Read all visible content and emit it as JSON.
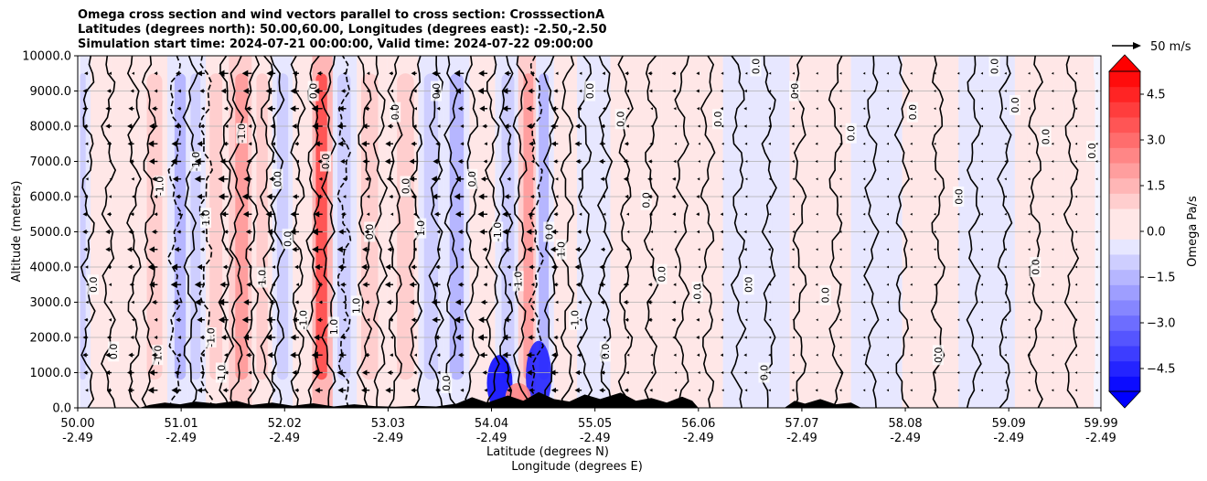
{
  "title_lines": [
    "Omega cross section and wind vectors parallel to cross section: CrosssectionA",
    "Latitudes (degrees north): 50.00,60.00, Longitudes (degrees east): -2.50,-2.50",
    "Simulation start time: 2024-07-21 00:00:00, Valid time: 2024-07-22 09:00:00"
  ],
  "chart_data": {
    "type": "heatmap",
    "title": "Omega cross section and wind vectors parallel to cross section: CrosssectionA",
    "xlabel_lines": [
      "Latitude (degrees N)",
      "Longitude (degrees E)"
    ],
    "ylabel": "Altitude (meters)",
    "xlim": [
      50.0,
      59.99
    ],
    "ylim": [
      0,
      10000
    ],
    "x_ticks": [
      {
        "lat": "50.00",
        "lon": "-2.49",
        "value": 50.0
      },
      {
        "lat": "51.01",
        "lon": "-2.49",
        "value": 51.01
      },
      {
        "lat": "52.02",
        "lon": "-2.49",
        "value": 52.02
      },
      {
        "lat": "53.03",
        "lon": "-2.49",
        "value": 53.03
      },
      {
        "lat": "54.04",
        "lon": "-2.49",
        "value": 54.04
      },
      {
        "lat": "55.05",
        "lon": "-2.49",
        "value": 55.05
      },
      {
        "lat": "56.06",
        "lon": "-2.49",
        "value": 56.06
      },
      {
        "lat": "57.07",
        "lon": "-2.49",
        "value": 57.07
      },
      {
        "lat": "58.08",
        "lon": "-2.49",
        "value": 58.08
      },
      {
        "lat": "59.09",
        "lon": "-2.49",
        "value": 59.09
      },
      {
        "lat": "59.99",
        "lon": "-2.49",
        "value": 59.99
      }
    ],
    "y_ticks": [
      {
        "label": "0.0",
        "value": 0
      },
      {
        "label": "1000.0",
        "value": 1000
      },
      {
        "label": "2000.0",
        "value": 2000
      },
      {
        "label": "3000.0",
        "value": 3000
      },
      {
        "label": "4000.0",
        "value": 4000
      },
      {
        "label": "5000.0",
        "value": 5000
      },
      {
        "label": "6000.0",
        "value": 6000
      },
      {
        "label": "7000.0",
        "value": 7000
      },
      {
        "label": "8000.0",
        "value": 8000
      },
      {
        "label": "9000.0",
        "value": 9000
      },
      {
        "label": "10000.0",
        "value": 10000
      }
    ],
    "grid": true,
    "colorbar": {
      "label": "Omega Pa/s",
      "range": [
        -5.25,
        5.25
      ],
      "levels_step": 0.5,
      "ticks": [
        {
          "label": "4.5",
          "value": 4.5
        },
        {
          "label": "3.0",
          "value": 3.0
        },
        {
          "label": "1.5",
          "value": 1.5
        },
        {
          "label": "0.0",
          "value": 0.0
        },
        {
          "label": "−1.5",
          "value": -1.5
        },
        {
          "label": "−3.0",
          "value": -3.0
        },
        {
          "label": "−4.5",
          "value": -4.5
        }
      ],
      "colors": {
        "positive_max": "#ff0000",
        "zero": "#ffffff",
        "negative_max": "#0000ff"
      }
    },
    "quiver_key": {
      "label": "50 m/s",
      "speed": 50
    },
    "omega_bands": [
      {
        "lat": 50.05,
        "omega": -0.6
      },
      {
        "lat": 50.2,
        "omega": 0.4
      },
      {
        "lat": 50.45,
        "omega": 0.3
      },
      {
        "lat": 50.75,
        "omega": 0.7
      },
      {
        "lat": 51.0,
        "omega": -1.4
      },
      {
        "lat": 51.15,
        "omega": -1.0
      },
      {
        "lat": 51.35,
        "omega": 0.8
      },
      {
        "lat": 51.6,
        "omega": 1.8
      },
      {
        "lat": 51.8,
        "omega": 0.9
      },
      {
        "lat": 52.0,
        "omega": -0.6
      },
      {
        "lat": 52.2,
        "omega": 0.5
      },
      {
        "lat": 52.38,
        "omega": 3.5
      },
      {
        "lat": 52.6,
        "omega": -0.8
      },
      {
        "lat": 52.85,
        "omega": 0.6
      },
      {
        "lat": 53.2,
        "omega": 0.9
      },
      {
        "lat": 53.45,
        "omega": -0.7
      },
      {
        "lat": 53.7,
        "omega": -1.2
      },
      {
        "lat": 53.95,
        "omega": 0.4
      },
      {
        "lat": 54.2,
        "omega": -0.9
      },
      {
        "lat": 54.4,
        "omega": 1.6
      },
      {
        "lat": 54.55,
        "omega": -1.3
      },
      {
        "lat": 54.75,
        "omega": 0.5
      },
      {
        "lat": 55.0,
        "omega": -0.4
      },
      {
        "lat": 55.4,
        "omega": 0.3
      },
      {
        "lat": 56.0,
        "omega": 0.5
      },
      {
        "lat": 56.6,
        "omega": -0.3
      },
      {
        "lat": 57.3,
        "omega": 0.3
      },
      {
        "lat": 57.8,
        "omega": -0.3
      },
      {
        "lat": 58.3,
        "omega": 0.4
      },
      {
        "lat": 58.9,
        "omega": -0.3
      },
      {
        "lat": 59.4,
        "omega": 0.3
      },
      {
        "lat": 59.85,
        "omega": 0.2
      }
    ],
    "low_level_cells": [
      {
        "lat": 54.12,
        "alt": 700,
        "omega": -5.0
      },
      {
        "lat": 54.5,
        "alt": 900,
        "omega": -4.5
      },
      {
        "lat": 54.3,
        "alt": 300,
        "omega": 2.5
      }
    ],
    "contours": [
      {
        "lat": 50.1,
        "style": "solid"
      },
      {
        "lat": 50.3,
        "style": "solid"
      },
      {
        "lat": 50.55,
        "style": "solid"
      },
      {
        "lat": 50.7,
        "style": "solid"
      },
      {
        "lat": 50.95,
        "style": "dashed"
      },
      {
        "lat": 51.1,
        "style": "solid"
      },
      {
        "lat": 51.25,
        "style": "dashed"
      },
      {
        "lat": 51.45,
        "style": "solid"
      },
      {
        "lat": 51.55,
        "style": "solid"
      },
      {
        "lat": 51.7,
        "style": "solid"
      },
      {
        "lat": 51.85,
        "style": "solid"
      },
      {
        "lat": 51.95,
        "style": "solid"
      },
      {
        "lat": 52.15,
        "style": "solid"
      },
      {
        "lat": 52.3,
        "style": "solid"
      },
      {
        "lat": 52.45,
        "style": "solid"
      },
      {
        "lat": 52.6,
        "style": "dashed"
      },
      {
        "lat": 52.8,
        "style": "solid"
      },
      {
        "lat": 52.95,
        "style": "solid"
      },
      {
        "lat": 53.1,
        "style": "solid"
      },
      {
        "lat": 53.3,
        "style": "solid"
      },
      {
        "lat": 53.5,
        "style": "solid"
      },
      {
        "lat": 53.65,
        "style": "solid"
      },
      {
        "lat": 53.85,
        "style": "solid"
      },
      {
        "lat": 54.05,
        "style": "solid"
      },
      {
        "lat": 54.18,
        "style": "solid"
      },
      {
        "lat": 54.32,
        "style": "solid"
      },
      {
        "lat": 54.48,
        "style": "dashed"
      },
      {
        "lat": 54.62,
        "style": "solid"
      },
      {
        "lat": 54.78,
        "style": "solid"
      },
      {
        "lat": 54.95,
        "style": "solid"
      },
      {
        "lat": 55.15,
        "style": "solid"
      },
      {
        "lat": 55.35,
        "style": "solid"
      },
      {
        "lat": 55.6,
        "style": "solid"
      },
      {
        "lat": 55.9,
        "style": "solid"
      },
      {
        "lat": 56.15,
        "style": "solid"
      },
      {
        "lat": 56.45,
        "style": "solid"
      },
      {
        "lat": 56.75,
        "style": "solid"
      },
      {
        "lat": 57.05,
        "style": "solid"
      },
      {
        "lat": 57.4,
        "style": "solid"
      },
      {
        "lat": 57.75,
        "style": "solid"
      },
      {
        "lat": 58.05,
        "style": "solid"
      },
      {
        "lat": 58.4,
        "style": "solid"
      },
      {
        "lat": 58.75,
        "style": "solid"
      },
      {
        "lat": 59.05,
        "style": "solid"
      },
      {
        "lat": 59.35,
        "style": "solid"
      },
      {
        "lat": 59.7,
        "style": "solid"
      }
    ],
    "contour_labels": [
      {
        "lat": 50.15,
        "alt": 3500,
        "text": "0.0"
      },
      {
        "lat": 50.35,
        "alt": 1600,
        "text": "0.0"
      },
      {
        "lat": 50.78,
        "alt": 1500,
        "text": "-1.0"
      },
      {
        "lat": 50.8,
        "alt": 6300,
        "text": "-1.0"
      },
      {
        "lat": 51.15,
        "alt": 7000,
        "text": "-1.0"
      },
      {
        "lat": 51.25,
        "alt": 5400,
        "text": "1.0"
      },
      {
        "lat": 51.3,
        "alt": 2000,
        "text": "-1.0"
      },
      {
        "lat": 51.4,
        "alt": 1000,
        "text": "1.0"
      },
      {
        "lat": 51.6,
        "alt": 7800,
        "text": "-1.0"
      },
      {
        "lat": 51.8,
        "alt": 3700,
        "text": "1.0"
      },
      {
        "lat": 51.95,
        "alt": 6500,
        "text": "0.0"
      },
      {
        "lat": 52.05,
        "alt": 4800,
        "text": "0.0"
      },
      {
        "lat": 52.2,
        "alt": 2500,
        "text": "-1.0"
      },
      {
        "lat": 52.3,
        "alt": 9000,
        "text": "0.0"
      },
      {
        "lat": 52.42,
        "alt": 7000,
        "text": "0.0"
      },
      {
        "lat": 52.5,
        "alt": 2300,
        "text": "1.0"
      },
      {
        "lat": 52.72,
        "alt": 2900,
        "text": "1.0"
      },
      {
        "lat": 52.85,
        "alt": 5000,
        "text": "0.0"
      },
      {
        "lat": 53.1,
        "alt": 8400,
        "text": "0.0"
      },
      {
        "lat": 53.2,
        "alt": 6300,
        "text": "0.0"
      },
      {
        "lat": 53.35,
        "alt": 5100,
        "text": "1.0"
      },
      {
        "lat": 53.5,
        "alt": 9000,
        "text": "0.0"
      },
      {
        "lat": 53.6,
        "alt": 700,
        "text": "0.0"
      },
      {
        "lat": 53.85,
        "alt": 6500,
        "text": "0.0"
      },
      {
        "lat": 54.1,
        "alt": 5000,
        "text": "-1.0"
      },
      {
        "lat": 54.3,
        "alt": 3600,
        "text": "-1.0"
      },
      {
        "lat": 54.6,
        "alt": 5000,
        "text": "0.0"
      },
      {
        "lat": 54.72,
        "alt": 4500,
        "text": "1.0"
      },
      {
        "lat": 54.85,
        "alt": 2500,
        "text": "-1.0"
      },
      {
        "lat": 55.0,
        "alt": 9000,
        "text": "0.0"
      },
      {
        "lat": 55.15,
        "alt": 1600,
        "text": "0.0"
      },
      {
        "lat": 55.3,
        "alt": 8200,
        "text": "0.0"
      },
      {
        "lat": 55.55,
        "alt": 5900,
        "text": "0.0"
      },
      {
        "lat": 55.7,
        "alt": 3800,
        "text": "0.0"
      },
      {
        "lat": 56.05,
        "alt": 3300,
        "text": "0.0"
      },
      {
        "lat": 56.25,
        "alt": 8200,
        "text": "0.0"
      },
      {
        "lat": 56.55,
        "alt": 3500,
        "text": "0.0"
      },
      {
        "lat": 56.62,
        "alt": 9700,
        "text": "0.0"
      },
      {
        "lat": 56.7,
        "alt": 1000,
        "text": "0.0"
      },
      {
        "lat": 57.0,
        "alt": 9000,
        "text": "0.0"
      },
      {
        "lat": 57.3,
        "alt": 3200,
        "text": "0.0"
      },
      {
        "lat": 57.55,
        "alt": 7800,
        "text": "0.0"
      },
      {
        "lat": 58.15,
        "alt": 8400,
        "text": "0.0"
      },
      {
        "lat": 58.4,
        "alt": 1500,
        "text": "0.0"
      },
      {
        "lat": 58.6,
        "alt": 6000,
        "text": "0.0"
      },
      {
        "lat": 58.95,
        "alt": 9700,
        "text": "0.0"
      },
      {
        "lat": 59.15,
        "alt": 8600,
        "text": "0.0"
      },
      {
        "lat": 59.35,
        "alt": 4000,
        "text": "0.0"
      },
      {
        "lat": 59.45,
        "alt": 7700,
        "text": "0.0"
      },
      {
        "lat": 59.9,
        "alt": 7300,
        "text": "0.0"
      }
    ],
    "wind_columns": [
      {
        "lat": 50.1,
        "speed": 8
      },
      {
        "lat": 50.33,
        "speed": 9
      },
      {
        "lat": 50.55,
        "speed": 10
      },
      {
        "lat": 50.78,
        "speed": 14
      },
      {
        "lat": 51.01,
        "speed": 15
      },
      {
        "lat": 51.24,
        "speed": 15
      },
      {
        "lat": 51.47,
        "speed": 15
      },
      {
        "lat": 51.7,
        "speed": 14
      },
      {
        "lat": 51.93,
        "speed": 14
      },
      {
        "lat": 52.16,
        "speed": 13
      },
      {
        "lat": 52.39,
        "speed": 16
      },
      {
        "lat": 52.62,
        "speed": 13
      },
      {
        "lat": 52.85,
        "speed": 12
      },
      {
        "lat": 53.08,
        "speed": 12
      },
      {
        "lat": 53.31,
        "speed": 11
      },
      {
        "lat": 53.54,
        "speed": 13
      },
      {
        "lat": 53.77,
        "speed": 14
      },
      {
        "lat": 54.0,
        "speed": 14
      },
      {
        "lat": 54.23,
        "speed": 13
      },
      {
        "lat": 54.46,
        "speed": 12
      },
      {
        "lat": 54.69,
        "speed": 11
      },
      {
        "lat": 54.92,
        "speed": 10
      },
      {
        "lat": 55.15,
        "speed": 9
      },
      {
        "lat": 55.38,
        "speed": 8
      },
      {
        "lat": 55.61,
        "speed": 7
      },
      {
        "lat": 55.84,
        "speed": 6
      },
      {
        "lat": 56.07,
        "speed": 5
      },
      {
        "lat": 56.3,
        "speed": 4
      },
      {
        "lat": 56.53,
        "speed": 4
      },
      {
        "lat": 56.76,
        "speed": 3
      },
      {
        "lat": 56.99,
        "speed": 3
      },
      {
        "lat": 57.22,
        "speed": 3
      },
      {
        "lat": 57.45,
        "speed": 2
      },
      {
        "lat": 57.68,
        "speed": 2
      },
      {
        "lat": 57.91,
        "speed": 2
      },
      {
        "lat": 58.14,
        "speed": 2
      },
      {
        "lat": 58.37,
        "speed": 2
      },
      {
        "lat": 58.6,
        "speed": 2
      },
      {
        "lat": 58.83,
        "speed": 1
      },
      {
        "lat": 59.06,
        "speed": 1
      },
      {
        "lat": 59.29,
        "speed": 1
      },
      {
        "lat": 59.52,
        "speed": 1
      },
      {
        "lat": 59.75,
        "speed": 1
      },
      {
        "lat": 59.95,
        "speed": 1
      }
    ],
    "wind_levels": [
      500,
      1000,
      1500,
      2000,
      2500,
      3000,
      3500,
      4000,
      4500,
      5000,
      5500,
      6000,
      6500,
      7000,
      7500,
      8000,
      8500,
      9000,
      9500
    ],
    "terrain": [
      {
        "lat": 50.0,
        "alt": 0
      },
      {
        "lat": 50.6,
        "alt": 0
      },
      {
        "lat": 50.7,
        "alt": 80
      },
      {
        "lat": 50.85,
        "alt": 150
      },
      {
        "lat": 51.0,
        "alt": 100
      },
      {
        "lat": 51.15,
        "alt": 180
      },
      {
        "lat": 51.35,
        "alt": 120
      },
      {
        "lat": 51.55,
        "alt": 200
      },
      {
        "lat": 51.7,
        "alt": 80
      },
      {
        "lat": 51.9,
        "alt": 150
      },
      {
        "lat": 52.1,
        "alt": 60
      },
      {
        "lat": 52.3,
        "alt": 130
      },
      {
        "lat": 52.5,
        "alt": 40
      },
      {
        "lat": 52.7,
        "alt": 100
      },
      {
        "lat": 52.9,
        "alt": 50
      },
      {
        "lat": 53.1,
        "alt": 30
      },
      {
        "lat": 53.3,
        "alt": 60
      },
      {
        "lat": 53.5,
        "alt": 40
      },
      {
        "lat": 53.7,
        "alt": 120
      },
      {
        "lat": 53.85,
        "alt": 300
      },
      {
        "lat": 54.0,
        "alt": 150
      },
      {
        "lat": 54.2,
        "alt": 350
      },
      {
        "lat": 54.35,
        "alt": 200
      },
      {
        "lat": 54.5,
        "alt": 450
      },
      {
        "lat": 54.65,
        "alt": 250
      },
      {
        "lat": 54.8,
        "alt": 180
      },
      {
        "lat": 54.95,
        "alt": 380
      },
      {
        "lat": 55.1,
        "alt": 250
      },
      {
        "lat": 55.3,
        "alt": 430
      },
      {
        "lat": 55.45,
        "alt": 200
      },
      {
        "lat": 55.6,
        "alt": 280
      },
      {
        "lat": 55.75,
        "alt": 150
      },
      {
        "lat": 55.9,
        "alt": 320
      },
      {
        "lat": 56.0,
        "alt": 200
      },
      {
        "lat": 56.06,
        "alt": 0
      },
      {
        "lat": 56.9,
        "alt": 0
      },
      {
        "lat": 57.0,
        "alt": 200
      },
      {
        "lat": 57.1,
        "alt": 120
      },
      {
        "lat": 57.25,
        "alt": 250
      },
      {
        "lat": 57.4,
        "alt": 100
      },
      {
        "lat": 57.55,
        "alt": 150
      },
      {
        "lat": 57.65,
        "alt": 0
      },
      {
        "lat": 59.99,
        "alt": 0
      }
    ]
  }
}
